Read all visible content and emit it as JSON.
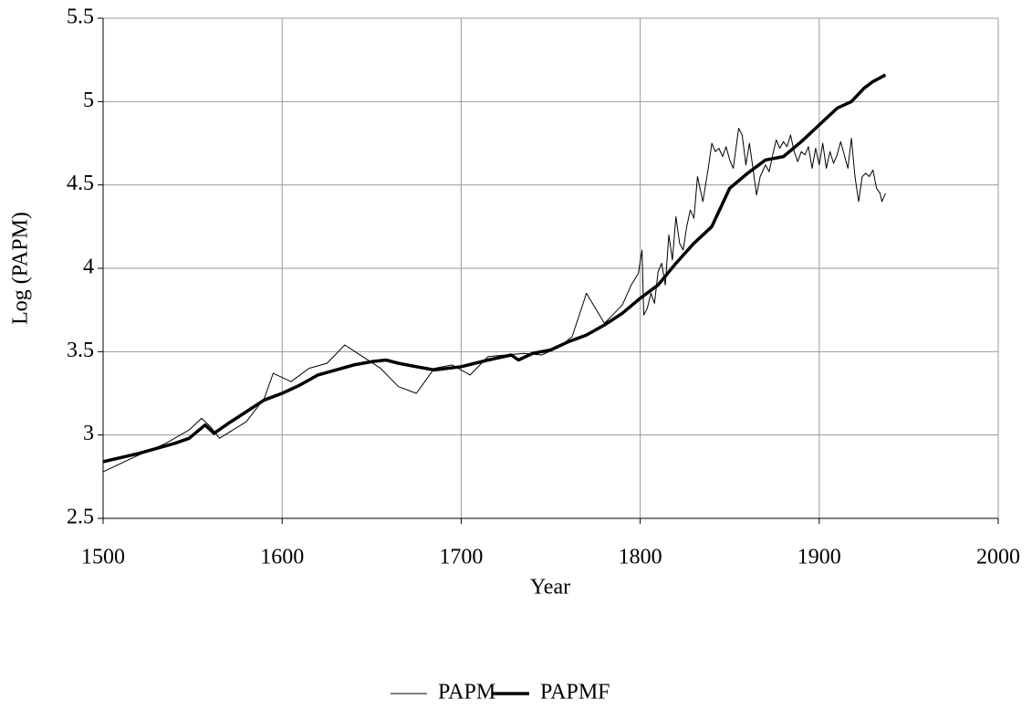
{
  "chart_data": {
    "type": "line",
    "x_label": "Year",
    "y_label": "Log (PAPM)",
    "xlim": [
      1500,
      2000
    ],
    "xticks": [
      1500,
      1600,
      1700,
      1800,
      1900,
      2000
    ],
    "ylim": [
      2.5,
      5.5
    ],
    "yticks": [
      2.5,
      3,
      3.5,
      4,
      4.5,
      5,
      5.5
    ],
    "grid": true,
    "legend": "bottom",
    "series": [
      {
        "name": "PAPM",
        "color": "#000000",
        "line_width": 1,
        "x": [
          1500,
          1520,
          1535,
          1548,
          1555,
          1560,
          1565,
          1580,
          1590,
          1595,
          1605,
          1615,
          1625,
          1635,
          1645,
          1655,
          1665,
          1675,
          1685,
          1695,
          1705,
          1715,
          1725,
          1735,
          1745,
          1755,
          1762,
          1770,
          1780,
          1790,
          1795,
          1799,
          1801,
          1802,
          1804,
          1806,
          1808,
          1810,
          1812,
          1814,
          1816,
          1818,
          1820,
          1822,
          1824,
          1826,
          1828,
          1830,
          1832,
          1835,
          1838,
          1840,
          1842,
          1844,
          1846,
          1848,
          1850,
          1852,
          1855,
          1857,
          1859,
          1861,
          1863,
          1865,
          1867,
          1870,
          1872,
          1874,
          1876,
          1878,
          1880,
          1882,
          1884,
          1886,
          1888,
          1890,
          1892,
          1894,
          1896,
          1898,
          1900,
          1902,
          1904,
          1906,
          1908,
          1910,
          1912,
          1914,
          1916,
          1918,
          1920,
          1922,
          1924,
          1926,
          1928,
          1930,
          1932,
          1934,
          1935,
          1937
        ],
        "values": [
          2.78,
          2.88,
          2.95,
          3.03,
          3.1,
          3.05,
          2.98,
          3.08,
          3.22,
          3.37,
          3.32,
          3.4,
          3.43,
          3.54,
          3.47,
          3.4,
          3.29,
          3.25,
          3.4,
          3.42,
          3.36,
          3.47,
          3.48,
          3.49,
          3.48,
          3.53,
          3.59,
          3.85,
          3.67,
          3.78,
          3.9,
          3.97,
          4.11,
          3.72,
          3.76,
          3.85,
          3.79,
          3.98,
          4.03,
          3.9,
          4.2,
          4.05,
          4.31,
          4.15,
          4.11,
          4.25,
          4.35,
          4.3,
          4.55,
          4.4,
          4.6,
          4.75,
          4.7,
          4.72,
          4.67,
          4.73,
          4.65,
          4.6,
          4.84,
          4.8,
          4.62,
          4.75,
          4.6,
          4.44,
          4.55,
          4.62,
          4.58,
          4.68,
          4.77,
          4.72,
          4.76,
          4.73,
          4.8,
          4.7,
          4.64,
          4.7,
          4.68,
          4.73,
          4.6,
          4.72,
          4.62,
          4.75,
          4.6,
          4.7,
          4.63,
          4.68,
          4.76,
          4.68,
          4.6,
          4.78,
          4.55,
          4.4,
          4.55,
          4.57,
          4.55,
          4.59,
          4.48,
          4.45,
          4.4,
          4.45
        ]
      },
      {
        "name": "PAPMF",
        "color": "#000000",
        "line_width": 3.5,
        "x": [
          1500,
          1520,
          1540,
          1548,
          1557,
          1562,
          1570,
          1580,
          1590,
          1600,
          1610,
          1620,
          1630,
          1640,
          1650,
          1658,
          1665,
          1675,
          1685,
          1700,
          1715,
          1728,
          1732,
          1740,
          1750,
          1760,
          1770,
          1780,
          1790,
          1800,
          1810,
          1820,
          1830,
          1840,
          1850,
          1860,
          1870,
          1880,
          1890,
          1900,
          1910,
          1918,
          1925,
          1930,
          1937
        ],
        "values": [
          2.84,
          2.89,
          2.95,
          2.98,
          3.06,
          3.01,
          3.07,
          3.14,
          3.21,
          3.25,
          3.3,
          3.36,
          3.39,
          3.42,
          3.44,
          3.45,
          3.43,
          3.41,
          3.39,
          3.41,
          3.45,
          3.48,
          3.45,
          3.49,
          3.51,
          3.56,
          3.6,
          3.66,
          3.73,
          3.82,
          3.9,
          4.03,
          4.15,
          4.25,
          4.48,
          4.57,
          4.65,
          4.67,
          4.76,
          4.86,
          4.96,
          5.0,
          5.08,
          5.12,
          5.16
        ]
      }
    ]
  }
}
